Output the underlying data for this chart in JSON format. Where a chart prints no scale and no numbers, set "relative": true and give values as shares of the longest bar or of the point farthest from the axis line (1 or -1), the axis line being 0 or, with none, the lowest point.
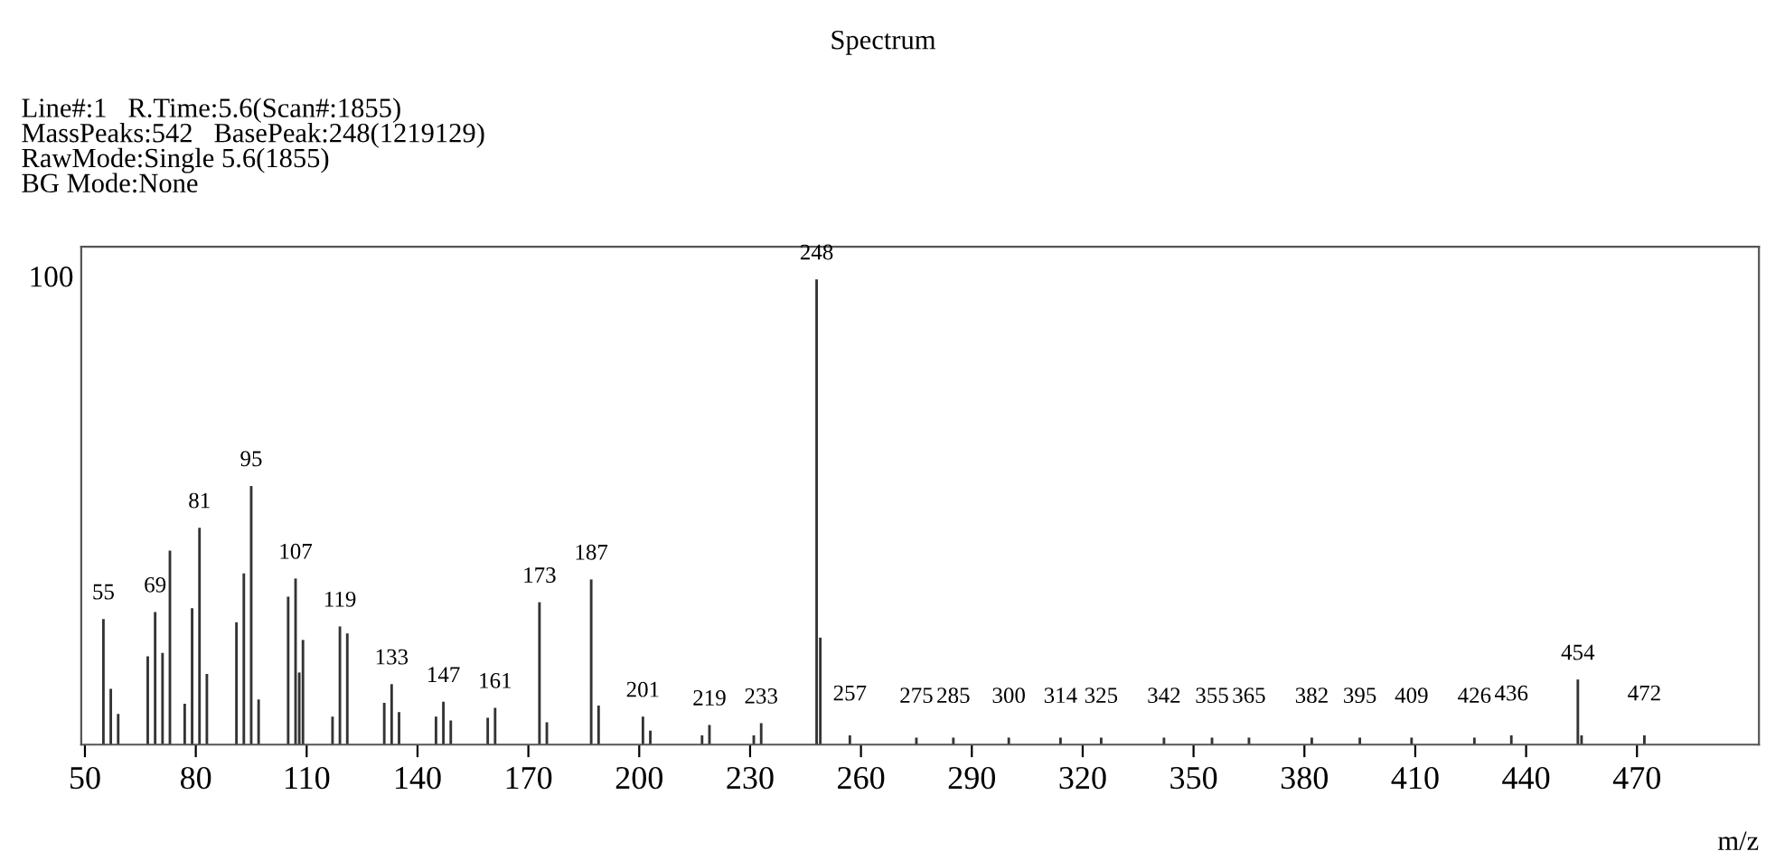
{
  "chart_data": {
    "type": "bar",
    "title": "Spectrum",
    "subtitle": "Line#:1   R.Time:5.6(Scan#:1855)\nMassPeaks:542   BasePeak:248(1219129)\nRawMode:Single 5.6(1855)\nBG Mode:None",
    "xlabel": "m/z",
    "relative": true,
    "color": "#333333",
    "grid": false,
    "xlim": [
      49,
      503
    ],
    "xticks": [
      50,
      80,
      110,
      140,
      170,
      200,
      230,
      260,
      290,
      320,
      350,
      380,
      410,
      440,
      470
    ],
    "x": [
      55,
      57,
      59,
      67,
      69,
      71,
      73,
      77,
      79,
      81,
      83,
      91,
      93,
      95,
      97,
      105,
      107,
      108,
      109,
      117,
      119,
      121,
      131,
      133,
      135,
      145,
      147,
      149,
      159,
      161,
      173,
      175,
      187,
      189,
      201,
      203,
      217,
      219,
      231,
      233,
      248,
      249,
      257,
      275,
      285,
      300,
      314,
      325,
      342,
      355,
      365,
      382,
      395,
      409,
      426,
      436,
      454,
      455,
      472
    ],
    "values": [
      0.27,
      0.12,
      0.066,
      0.19,
      0.285,
      0.197,
      0.417,
      0.088,
      0.293,
      0.466,
      0.152,
      0.263,
      0.368,
      0.556,
      0.097,
      0.318,
      0.357,
      0.155,
      0.225,
      0.06,
      0.254,
      0.239,
      0.09,
      0.13,
      0.07,
      0.06,
      0.092,
      0.052,
      0.058,
      0.079,
      0.306,
      0.048,
      0.355,
      0.084,
      0.06,
      0.03,
      0.02,
      0.042,
      0.02,
      0.046,
      1,
      0.23,
      0.02,
      0.015,
      0.015,
      0.015,
      0.015,
      0.015,
      0.015,
      0.015,
      0.015,
      0.015,
      0.015,
      0.015,
      0.015,
      0.02,
      0.14,
      0.02,
      0.02
    ],
    "annotations": [
      "100",
      {
        "text": "55",
        "x": 55,
        "y": 0.27
      },
      {
        "text": "69",
        "x": 69,
        "y": 0.285
      },
      {
        "text": "81",
        "x": 81,
        "y": 0.466
      },
      {
        "text": "95",
        "x": 95,
        "y": 0.556
      },
      {
        "text": "107",
        "x": 107,
        "y": 0.357
      },
      {
        "text": "119",
        "x": 119,
        "y": 0.254
      },
      {
        "text": "133",
        "x": 133,
        "y": 0.13
      },
      {
        "text": "147",
        "x": 147,
        "y": 0.092
      },
      {
        "text": "161",
        "x": 161,
        "y": 0.079
      },
      {
        "text": "173",
        "x": 173,
        "y": 0.306
      },
      {
        "text": "187",
        "x": 187,
        "y": 0.355
      },
      {
        "text": "201",
        "x": 201,
        "y": 0.06
      },
      {
        "text": "219",
        "x": 219,
        "y": 0.042
      },
      {
        "text": "233",
        "x": 233,
        "y": 0.046
      },
      {
        "text": "248",
        "x": 248,
        "y": 1
      },
      {
        "text": "257",
        "x": 257,
        "y": 0.02
      },
      {
        "text": "275",
        "x": 275,
        "y": 0.015
      },
      {
        "text": "285",
        "x": 285,
        "y": 0.015
      },
      {
        "text": "300",
        "x": 300,
        "y": 0.015
      },
      {
        "text": "314",
        "x": 314,
        "y": 0.015
      },
      {
        "text": "325",
        "x": 325,
        "y": 0.015
      },
      {
        "text": "342",
        "x": 342,
        "y": 0.015
      },
      {
        "text": "355",
        "x": 355,
        "y": 0.015
      },
      {
        "text": "365",
        "x": 365,
        "y": 0.015
      },
      {
        "text": "382",
        "x": 382,
        "y": 0.015
      },
      {
        "text": "395",
        "x": 395,
        "y": 0.015
      },
      {
        "text": "409",
        "x": 409,
        "y": 0.015
      },
      {
        "text": "426",
        "x": 426,
        "y": 0.015
      },
      {
        "text": "436",
        "x": 436,
        "y": 0.02
      },
      {
        "text": "454",
        "x": 454,
        "y": 0.14
      },
      {
        "text": "472",
        "x": 472,
        "y": 0.02
      }
    ]
  }
}
